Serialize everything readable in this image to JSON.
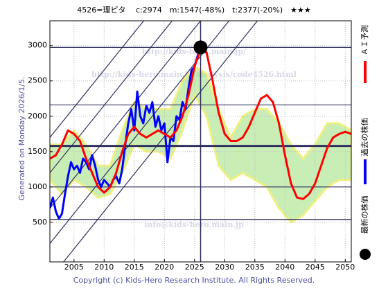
{
  "chart_data": {
    "type": "line",
    "title": "4526=理ピタ　 c:2974　m:1547(-48%)　t:2377(-20%)　★★★",
    "side_label": "Generated on Monday 2026/1/5.",
    "footer": "Copyright (c) Kids-Hero Research Institute. All Rights Reserved.",
    "watermarks": [
      "http://kids-hero.main.jp/",
      "http://kids-hero.main.jp/analysis/code4526.html",
      "info@kids-hero.main.jp"
    ],
    "xlim": [
      2001,
      2051
    ],
    "ylim": [
      -60,
      3350
    ],
    "xticks": [
      2005,
      2010,
      2015,
      2020,
      2025,
      2030,
      2035,
      2040,
      2045,
      2050
    ],
    "yticks": [
      500,
      1000,
      1500,
      2000,
      2500,
      3000
    ],
    "grid": true,
    "hlines": [
      2974,
      2160,
      1580,
      1000,
      540
    ],
    "trend_lines": [
      {
        "x": [
          2001,
          2051
        ],
        "values": [
          -300,
          5000
        ]
      },
      {
        "x": [
          2001,
          2051
        ],
        "values": [
          200,
          5500
        ]
      },
      {
        "x": [
          2001,
          2051
        ],
        "values": [
          700,
          6000
        ]
      },
      {
        "x": [
          2001,
          2051
        ],
        "values": [
          1200,
          6500
        ]
      },
      {
        "x": [
          2001,
          2051
        ],
        "values": [
          1700,
          7000
        ]
      }
    ],
    "band": {
      "color": "#9be07a",
      "x": [
        2001,
        2003,
        2005,
        2007,
        2009,
        2011,
        2013,
        2015,
        2017,
        2019,
        2021,
        2023,
        2025,
        2027,
        2029,
        2031,
        2033,
        2035,
        2037,
        2039,
        2041,
        2043,
        2045,
        2047,
        2049,
        2051
      ],
      "upper": [
        1600,
        1600,
        1800,
        1600,
        1300,
        1300,
        1800,
        2200,
        2100,
        2100,
        2100,
        2500,
        2700,
        2600,
        2100,
        1700,
        2000,
        2100,
        2100,
        1900,
        1600,
        1400,
        1600,
        1900,
        1900,
        1800
      ],
      "lower": [
        1100,
        900,
        1100,
        1000,
        850,
        900,
        1200,
        1600,
        1500,
        1500,
        1400,
        1800,
        2300,
        2000,
        1300,
        1100,
        1200,
        1100,
        1000,
        700,
        500,
        600,
        800,
        1000,
        1100,
        1100
      ]
    },
    "series": [
      {
        "name": "ＡＩ予測",
        "color": "#ff0000",
        "x": [
          2001,
          2002,
          2003,
          2004,
          2005,
          2006,
          2007,
          2008,
          2009,
          2010,
          2011,
          2012,
          2013,
          2014,
          2015,
          2016,
          2017,
          2018,
          2019,
          2020,
          2021,
          2022,
          2023,
          2024,
          2025,
          2026,
          2027,
          2028,
          2029,
          2030,
          2031,
          2032,
          2033,
          2034,
          2035,
          2036,
          2037,
          2038,
          2039,
          2040,
          2041,
          2042,
          2043,
          2044,
          2045,
          2046,
          2047,
          2048,
          2049,
          2050,
          2051
        ],
        "values": [
          1400,
          1450,
          1600,
          1800,
          1750,
          1650,
          1400,
          1200,
          1000,
          920,
          1000,
          1200,
          1500,
          1750,
          1850,
          1750,
          1700,
          1750,
          1800,
          1750,
          1700,
          1800,
          2000,
          2300,
          2700,
          2950,
          2900,
          2500,
          2050,
          1750,
          1650,
          1650,
          1700,
          1850,
          2050,
          2250,
          2300,
          2200,
          1900,
          1450,
          1050,
          850,
          830,
          900,
          1050,
          1300,
          1550,
          1700,
          1750,
          1780,
          1750
        ]
      },
      {
        "name": "過去の株価",
        "color": "#0000ff",
        "x": [
          2001,
          2001.5,
          2002,
          2002.5,
          2003,
          2003.5,
          2004,
          2004.5,
          2005,
          2005.5,
          2006,
          2006.5,
          2007,
          2007.5,
          2008,
          2008.5,
          2009,
          2009.5,
          2010,
          2010.5,
          2011,
          2011.5,
          2012,
          2012.5,
          2013,
          2013.5,
          2014,
          2014.5,
          2015,
          2015.5,
          2016,
          2016.5,
          2017,
          2017.5,
          2018,
          2018.5,
          2019,
          2019.5,
          2020,
          2020.5,
          2021,
          2021.5,
          2022,
          2022.5,
          2023,
          2023.5,
          2024,
          2024.5,
          2025,
          2025.5,
          2026
        ],
        "values": [
          700,
          850,
          650,
          550,
          620,
          900,
          1150,
          1350,
          1250,
          1300,
          1200,
          1400,
          1350,
          1250,
          1450,
          1300,
          1100,
          1000,
          1100,
          1050,
          1000,
          1100,
          1150,
          1050,
          1250,
          1600,
          1900,
          2100,
          1800,
          2350,
          2000,
          1900,
          2150,
          2050,
          2200,
          1850,
          2000,
          1800,
          1900,
          1350,
          1700,
          1650,
          2000,
          1950,
          2200,
          2100,
          2400,
          2650,
          2700,
          2850,
          2974
        ]
      },
      {
        "name": "最新の株価",
        "color": "#000000",
        "x": [
          2026
        ],
        "values": [
          2974
        ]
      }
    ]
  }
}
